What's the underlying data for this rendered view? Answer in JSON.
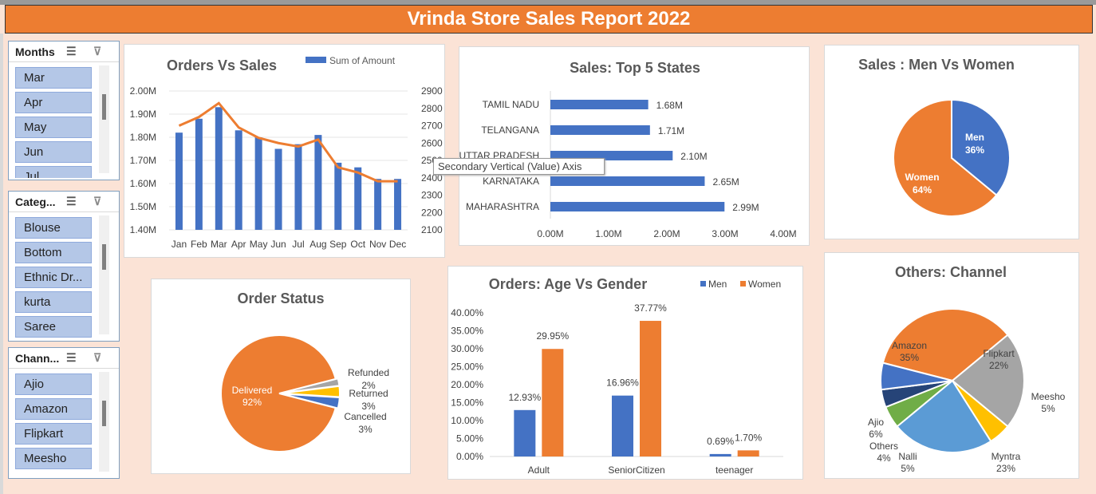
{
  "report_title": "Vrinda Store Sales Report 2022",
  "tooltip": "Secondary Vertical (Value) Axis",
  "slicers": [
    {
      "title": "Months",
      "items": [
        "Mar",
        "Apr",
        "May",
        "Jun",
        "Jul"
      ]
    },
    {
      "title": "Categ...",
      "items": [
        "Blouse",
        "Bottom",
        "Ethnic Dr...",
        "kurta",
        "Saree"
      ]
    },
    {
      "title": "Chann...",
      "items": [
        "Ajio",
        "Amazon",
        "Flipkart",
        "Meesho"
      ]
    }
  ],
  "chart_data": [
    {
      "type": "bar",
      "title": "Orders Vs Sales",
      "categories": [
        "Jan",
        "Feb",
        "Mar",
        "Apr",
        "May",
        "Jun",
        "Jul",
        "Aug",
        "Sep",
        "Oct",
        "Nov",
        "Dec"
      ],
      "series": [
        {
          "name": "Sum of Amount",
          "values": [
            1.82,
            1.88,
            1.93,
            1.83,
            1.8,
            1.75,
            1.77,
            1.81,
            1.69,
            1.67,
            1.62,
            1.62
          ]
        },
        {
          "type": "line",
          "axis": "secondary",
          "values": [
            2700,
            2750,
            2830,
            2690,
            2630,
            2600,
            2580,
            2620,
            2460,
            2430,
            2380,
            2380
          ]
        }
      ],
      "y_ticks": [
        "1.40M",
        "1.50M",
        "1.60M",
        "1.70M",
        "1.80M",
        "1.90M",
        "2.00M"
      ],
      "y2_ticks": [
        "2100",
        "2200",
        "2300",
        "2400",
        "2500",
        "2600",
        "2700",
        "2800",
        "2900"
      ],
      "ylim": [
        1.4,
        2.0
      ],
      "y2lim": [
        2100,
        2900
      ],
      "colors": [
        "#4472c4",
        "#ed7d31"
      ]
    },
    {
      "type": "bar",
      "orientation": "horizontal",
      "title": "Sales: Top 5 States",
      "categories": [
        "TAMIL NADU",
        "TELANGANA",
        "UTTAR PRADESH",
        "KARNATAKA",
        "MAHARASHTRA"
      ],
      "values": [
        1.68,
        1.71,
        2.1,
        2.65,
        2.99
      ],
      "labels": [
        "1.68M",
        "1.71M",
        "2.10M",
        "2.65M",
        "2.99M"
      ],
      "x_ticks": [
        "0.00M",
        "1.00M",
        "2.00M",
        "3.00M",
        "4.00M"
      ],
      "xlim": [
        0,
        4
      ],
      "color": "#4472c4"
    },
    {
      "type": "pie",
      "title": "Sales : Men Vs Women",
      "slices": [
        {
          "name": "Men",
          "value": 36,
          "label": "36%",
          "color": "#4472c4"
        },
        {
          "name": "Women",
          "value": 64,
          "label": "64%",
          "color": "#ed7d31"
        }
      ]
    },
    {
      "type": "pie",
      "title": "Order Status",
      "slices": [
        {
          "name": "Delivered",
          "value": 92,
          "label": "92%",
          "color": "#ed7d31"
        },
        {
          "name": "Refunded",
          "value": 2,
          "label": "2%",
          "color": "#a5a5a5"
        },
        {
          "name": "Returned",
          "value": 3,
          "label": "3%",
          "color": "#ffc000"
        },
        {
          "name": "Cancelled",
          "value": 3,
          "label": "3%",
          "color": "#4472c4"
        }
      ]
    },
    {
      "type": "bar",
      "title": "Orders: Age Vs Gender",
      "categories": [
        "Adult",
        "SeniorCitizen",
        "teenager"
      ],
      "series": [
        {
          "name": "Men",
          "values": [
            12.93,
            16.96,
            0.69
          ],
          "labels": [
            "12.93%",
            "16.96%",
            "0.69%"
          ],
          "color": "#4472c4"
        },
        {
          "name": "Women",
          "values": [
            29.95,
            37.77,
            1.7
          ],
          "labels": [
            "29.95%",
            "37.77%",
            "1.70%"
          ],
          "color": "#ed7d31"
        }
      ],
      "y_ticks": [
        "0.00%",
        "5.00%",
        "10.00%",
        "15.00%",
        "20.00%",
        "25.00%",
        "30.00%",
        "35.00%",
        "40.00%"
      ],
      "ylim": [
        0,
        40
      ],
      "legend": "top-right"
    },
    {
      "type": "pie",
      "title": "Others: Channel",
      "slices": [
        {
          "name": "Amazon",
          "value": 35,
          "label": "35%",
          "color": "#ed7d31"
        },
        {
          "name": "Flipkart",
          "value": 22,
          "label": "22%",
          "color": "#a5a5a5"
        },
        {
          "name": "Meesho",
          "value": 5,
          "label": "5%",
          "color": "#ffc000"
        },
        {
          "name": "Myntra",
          "value": 23,
          "label": "23%",
          "color": "#5b9bd5"
        },
        {
          "name": "Nalli",
          "value": 5,
          "label": "5%",
          "color": "#70ad47"
        },
        {
          "name": "Others",
          "value": 4,
          "label": "4%",
          "color": "#264478"
        },
        {
          "name": "Ajio",
          "value": 6,
          "label": "6%",
          "color": "#4472c4"
        }
      ]
    }
  ]
}
